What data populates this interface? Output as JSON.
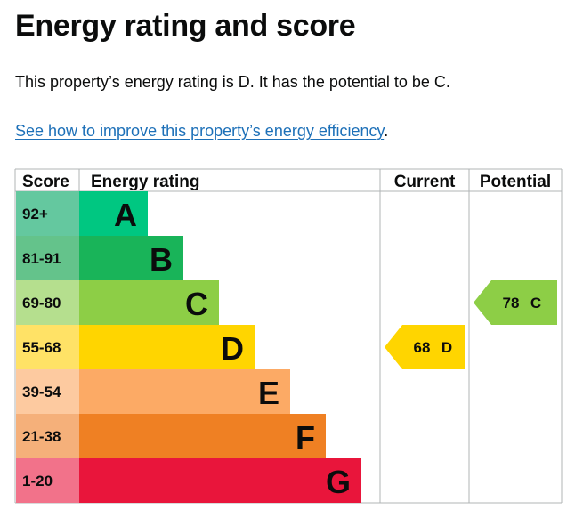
{
  "page": {
    "title": "Energy rating and score",
    "summary": "This property’s energy rating is D. It has the potential to be C.",
    "improve_link": "See how to improve this property’s energy efficiency",
    "improve_trailing": "."
  },
  "table": {
    "headers": {
      "score": "Score",
      "rating": "Energy rating",
      "current": "Current",
      "potential": "Potential"
    }
  },
  "bands": [
    {
      "score": "92+",
      "letter": "A",
      "color": "#00c781",
      "score_bg": "#64c89f"
    },
    {
      "score": "81-91",
      "letter": "B",
      "color": "#19b459",
      "score_bg": "#64c38b"
    },
    {
      "score": "69-80",
      "letter": "C",
      "color": "#8dce46",
      "score_bg": "#b5df8e"
    },
    {
      "score": "55-68",
      "letter": "D",
      "color": "#ffd500",
      "score_bg": "#ffe266"
    },
    {
      "score": "39-54",
      "letter": "E",
      "color": "#fcaa65",
      "score_bg": "#fdcaa0"
    },
    {
      "score": "21-38",
      "letter": "F",
      "color": "#ef8023",
      "score_bg": "#f5b07a"
    },
    {
      "score": "1-20",
      "letter": "G",
      "color": "#e9153b",
      "score_bg": "#f2728a"
    }
  ],
  "current": {
    "value": "68",
    "letter": "D",
    "band": "D",
    "color": "#ffd500"
  },
  "potential": {
    "value": "78",
    "letter": "C",
    "band": "C",
    "color": "#8dce46"
  },
  "colors": {
    "link": "#1d70b8",
    "grid": "#b1b4b6",
    "text": "#0b0c0c"
  }
}
